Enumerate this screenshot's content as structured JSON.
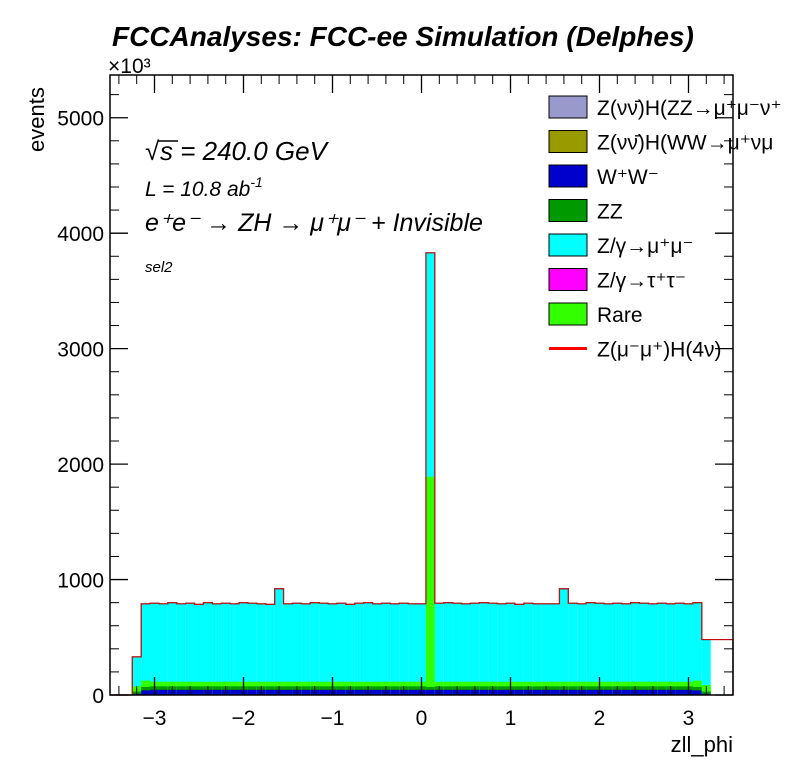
{
  "chart_data": {
    "type": "histogram-stacked",
    "title": "FCCAnalyses: FCC-ee Simulation (Delphes)",
    "xlabel": "zll_phi",
    "ylabel": "events",
    "y_multiplier_label": "×10³",
    "xlim": [
      -3.5,
      3.5
    ],
    "ylim": [
      0,
      5370
    ],
    "x_ticks": [
      -3,
      -2,
      -1,
      0,
      1,
      2,
      3
    ],
    "x_tick_labels": [
      "−3",
      "−2",
      "−1",
      "0",
      "1",
      "2",
      "3"
    ],
    "y_ticks": [
      0,
      1000,
      2000,
      3000,
      4000,
      5000
    ],
    "y_tick_labels": [
      "0",
      "1000",
      "2000",
      "3000",
      "4000",
      "5000"
    ],
    "bin_width": 0.1,
    "annotations": {
      "sqrt_s": "√s = 240.0 GeV",
      "sqrt_symbol": "√",
      "sqrt_s_text": "s = 240.0 GeV",
      "lumi_prefix": "L = 10.8 ab",
      "lumi_exp": "-1",
      "process_line": "e⁺e⁻ → ZH → μ⁺μ⁻ + Invisible",
      "selection": "sel2"
    },
    "legend": [
      {
        "label": "Z(νν̄)H(ZZ→μ⁺μ⁻ν⁺",
        "color": "#9999cc",
        "kind": "fill"
      },
      {
        "label": "Z(νν̄)H(WW→μ⁺νμ",
        "color": "#999900",
        "kind": "fill"
      },
      {
        "label": "W⁺W⁻",
        "color": "#0000cc",
        "kind": "fill"
      },
      {
        "label": "ZZ",
        "color": "#009900",
        "kind": "fill"
      },
      {
        "label": "Z/γ→μ⁺μ⁻",
        "color": "#00ffff",
        "kind": "fill"
      },
      {
        "label": "Z/γ→τ⁺τ⁻",
        "color": "#ff00ff",
        "kind": "fill"
      },
      {
        "label": "Rare",
        "color": "#33ff00",
        "kind": "fill"
      },
      {
        "label": "Z(μ⁻μ⁺)H(4ν)",
        "color": "#ff0000",
        "kind": "line"
      }
    ],
    "bins": [
      {
        "x": -3.2,
        "total": 330,
        "ww": 10,
        "zz": 30,
        "rare": 75
      },
      {
        "x": -3.1,
        "total": 790,
        "ww": 40,
        "zz": 70,
        "rare": 125
      },
      {
        "x": -3.0,
        "total": 795
      },
      {
        "x": -2.9,
        "total": 790
      },
      {
        "x": -2.8,
        "total": 800
      },
      {
        "x": -2.7,
        "total": 790
      },
      {
        "x": -2.6,
        "total": 795
      },
      {
        "x": -2.5,
        "total": 785
      },
      {
        "x": -2.4,
        "total": 800
      },
      {
        "x": -2.3,
        "total": 790
      },
      {
        "x": -2.2,
        "total": 795
      },
      {
        "x": -2.1,
        "total": 790
      },
      {
        "x": -2.0,
        "total": 800
      },
      {
        "x": -1.9,
        "total": 795
      },
      {
        "x": -1.8,
        "total": 790
      },
      {
        "x": -1.7,
        "total": 785
      },
      {
        "x": -1.6,
        "total": 920
      },
      {
        "x": -1.5,
        "total": 790
      },
      {
        "x": -1.4,
        "total": 795
      },
      {
        "x": -1.3,
        "total": 790
      },
      {
        "x": -1.2,
        "total": 800
      },
      {
        "x": -1.1,
        "total": 795
      },
      {
        "x": -1.0,
        "total": 790
      },
      {
        "x": -0.9,
        "total": 795
      },
      {
        "x": -0.8,
        "total": 785
      },
      {
        "x": -0.7,
        "total": 795
      },
      {
        "x": -0.6,
        "total": 800
      },
      {
        "x": -0.5,
        "total": 790
      },
      {
        "x": -0.4,
        "total": 795
      },
      {
        "x": -0.3,
        "total": 790
      },
      {
        "x": -0.2,
        "total": 795
      },
      {
        "x": -0.1,
        "total": 790
      },
      {
        "x": 0.0,
        "total": 790
      },
      {
        "x": 0.1,
        "total": 3830,
        "zz": 70,
        "rare": 1890
      },
      {
        "x": 0.2,
        "total": 795
      },
      {
        "x": 0.3,
        "total": 800
      },
      {
        "x": 0.4,
        "total": 795
      },
      {
        "x": 0.5,
        "total": 790
      },
      {
        "x": 0.6,
        "total": 795
      },
      {
        "x": 0.7,
        "total": 800
      },
      {
        "x": 0.8,
        "total": 795
      },
      {
        "x": 0.9,
        "total": 790
      },
      {
        "x": 1.0,
        "total": 795
      },
      {
        "x": 1.1,
        "total": 785
      },
      {
        "x": 1.2,
        "total": 795
      },
      {
        "x": 1.3,
        "total": 790
      },
      {
        "x": 1.4,
        "total": 790
      },
      {
        "x": 1.5,
        "total": 790
      },
      {
        "x": 1.6,
        "total": 920
      },
      {
        "x": 1.7,
        "total": 795
      },
      {
        "x": 1.8,
        "total": 790
      },
      {
        "x": 1.9,
        "total": 800
      },
      {
        "x": 2.0,
        "total": 795
      },
      {
        "x": 2.1,
        "total": 790
      },
      {
        "x": 2.2,
        "total": 795
      },
      {
        "x": 2.3,
        "total": 790
      },
      {
        "x": 2.4,
        "total": 800
      },
      {
        "x": 2.5,
        "total": 795
      },
      {
        "x": 2.6,
        "total": 790
      },
      {
        "x": 2.7,
        "total": 795
      },
      {
        "x": 2.8,
        "total": 790
      },
      {
        "x": 2.9,
        "total": 795
      },
      {
        "x": 3.0,
        "total": 790
      },
      {
        "x": 3.1,
        "total": 800,
        "ww": 40,
        "zz": 70,
        "rare": 125
      },
      {
        "x": 3.2,
        "total": 480,
        "ww": 10,
        "zz": 30,
        "rare": 85
      }
    ],
    "default_components": {
      "ww": 45,
      "zz": 75,
      "rare": 115
    },
    "grid": false,
    "legend_position": "top-right"
  }
}
